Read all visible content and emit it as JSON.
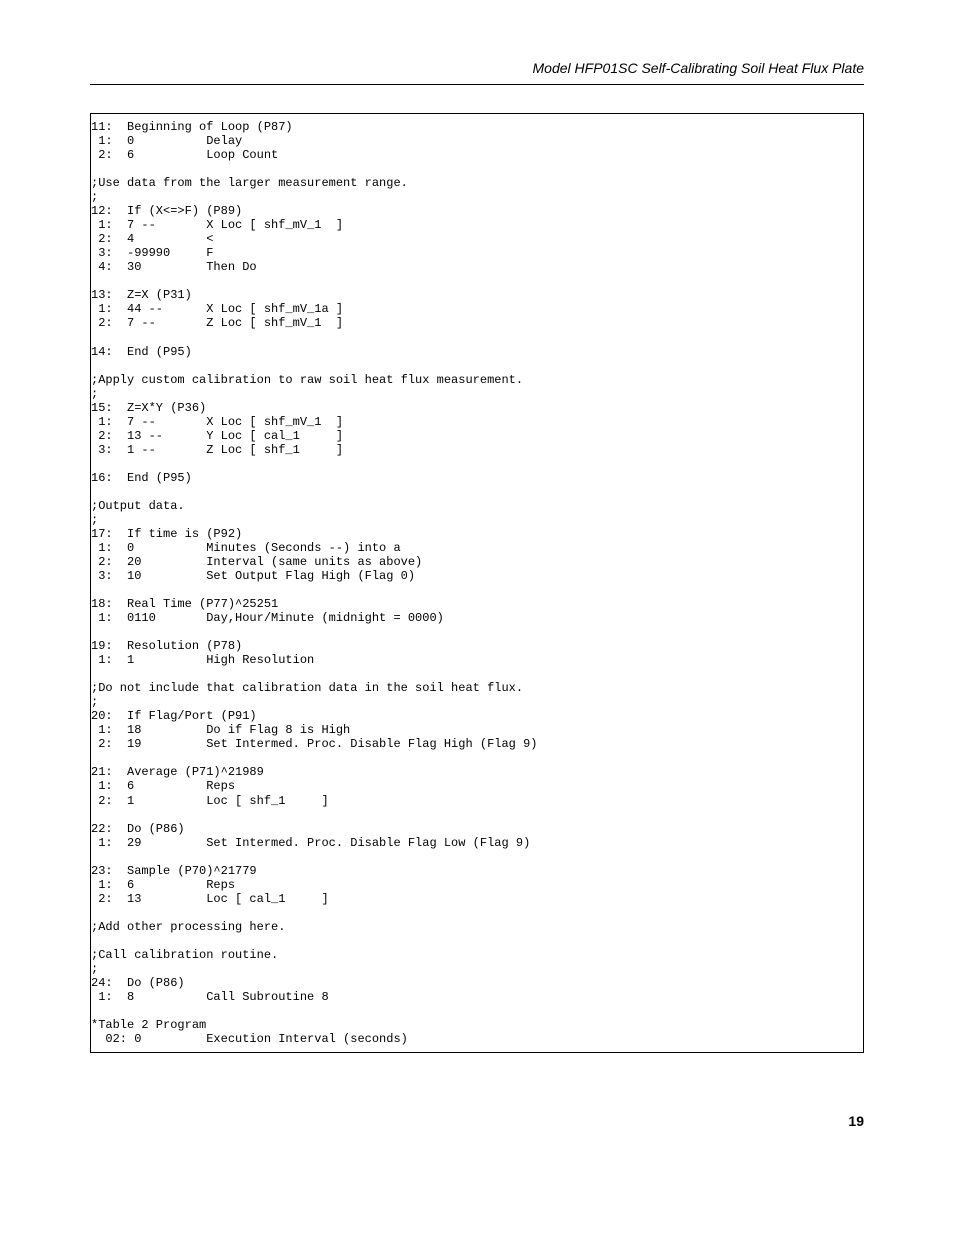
{
  "header": {
    "title": "Model HFP01SC Self-Calibrating Soil Heat Flux Plate"
  },
  "code": "11:  Beginning of Loop (P87)\n 1:  0          Delay\n 2:  6          Loop Count\n\n;Use data from the larger measurement range.\n;\n12:  If (X<=>F) (P89)\n 1:  7 --       X Loc [ shf_mV_1  ]\n 2:  4          <\n 3:  -99990     F\n 4:  30         Then Do\n\n13:  Z=X (P31)\n 1:  44 --      X Loc [ shf_mV_1a ]\n 2:  7 --       Z Loc [ shf_mV_1  ]\n\n14:  End (P95)\n\n;Apply custom calibration to raw soil heat flux measurement.\n;\n15:  Z=X*Y (P36)\n 1:  7 --       X Loc [ shf_mV_1  ]\n 2:  13 --      Y Loc [ cal_1     ]\n 3:  1 --       Z Loc [ shf_1     ]\n\n16:  End (P95)\n\n;Output data.\n;\n17:  If time is (P92)\n 1:  0          Minutes (Seconds --) into a\n 2:  20         Interval (same units as above)\n 3:  10         Set Output Flag High (Flag 0)\n\n18:  Real Time (P77)^25251\n 1:  0110       Day,Hour/Minute (midnight = 0000)\n\n19:  Resolution (P78)\n 1:  1          High Resolution\n\n;Do not include that calibration data in the soil heat flux.\n;\n20:  If Flag/Port (P91)\n 1:  18         Do if Flag 8 is High\n 2:  19         Set Intermed. Proc. Disable Flag High (Flag 9)\n\n21:  Average (P71)^21989\n 1:  6          Reps\n 2:  1          Loc [ shf_1     ]\n\n22:  Do (P86)\n 1:  29         Set Intermed. Proc. Disable Flag Low (Flag 9)\n\n23:  Sample (P70)^21779\n 1:  6          Reps\n 2:  13         Loc [ cal_1     ]\n\n;Add other processing here.\n\n;Call calibration routine.\n;\n24:  Do (P86)\n 1:  8          Call Subroutine 8\n\n*Table 2 Program\n  02: 0         Execution Interval (seconds)",
  "footer": {
    "page_number": "19"
  }
}
